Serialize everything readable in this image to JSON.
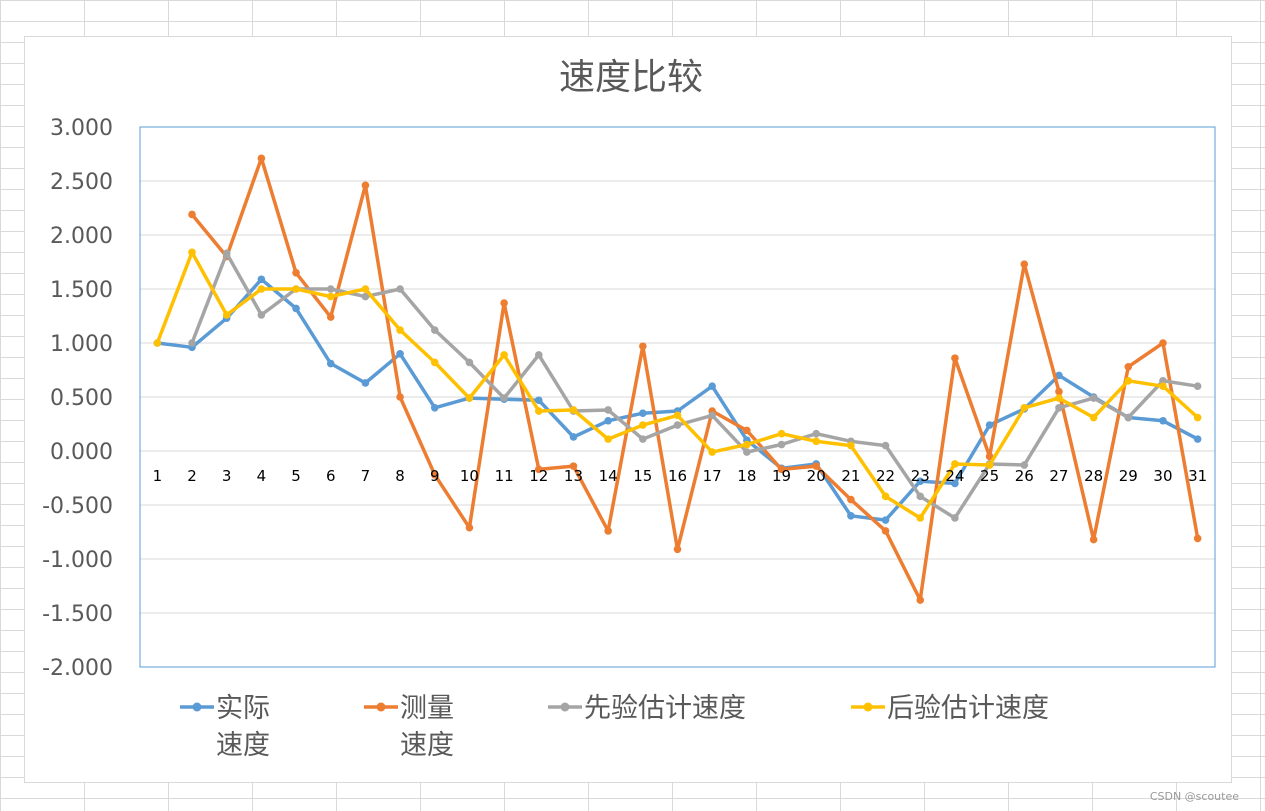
{
  "chart_data": {
    "type": "line",
    "title": "速度比较",
    "x": [
      1,
      2,
      3,
      4,
      5,
      6,
      7,
      8,
      9,
      10,
      11,
      12,
      13,
      14,
      15,
      16,
      17,
      18,
      19,
      20,
      21,
      22,
      23,
      24,
      25,
      26,
      27,
      28,
      29,
      30,
      31
    ],
    "ylim": [
      -2,
      3
    ],
    "yticks": [
      "3.000",
      "2.500",
      "2.000",
      "1.500",
      "1.000",
      "0.500",
      "0.000",
      "-0.500",
      "-1.000",
      "-1.500",
      "-2.000"
    ],
    "grid": true,
    "legend_position": "bottom",
    "series": [
      {
        "name": "实际速度",
        "legend_lines": [
          "实际",
          "速度"
        ],
        "color": "#5b9bd5",
        "values": [
          1.0,
          0.96,
          1.23,
          1.59,
          1.32,
          0.81,
          0.63,
          0.9,
          0.4,
          0.49,
          0.48,
          0.47,
          0.13,
          0.28,
          0.35,
          0.37,
          0.6,
          0.1,
          -0.16,
          -0.12,
          -0.6,
          -0.64,
          -0.28,
          -0.3,
          0.24,
          0.39,
          0.7,
          0.5,
          0.31,
          0.28,
          0.11
        ]
      },
      {
        "name": "测量速度",
        "legend_lines": [
          "测量",
          "速度"
        ],
        "color": "#ed7d31",
        "values": [
          null,
          2.19,
          1.8,
          2.71,
          1.65,
          1.24,
          2.46,
          0.5,
          -0.22,
          -0.71,
          1.37,
          -0.17,
          -0.14,
          -0.74,
          0.97,
          -0.91,
          0.37,
          0.19,
          -0.17,
          -0.14,
          -0.45,
          -0.74,
          -1.38,
          0.86,
          -0.05,
          1.73,
          0.55,
          -0.82,
          0.78,
          1.0,
          -0.81
        ]
      },
      {
        "name": "先验估计速度",
        "legend_lines": [
          "先验估计速度"
        ],
        "color": "#a5a5a5",
        "values": [
          null,
          1.0,
          1.83,
          1.26,
          1.5,
          1.5,
          1.43,
          1.5,
          1.12,
          0.82,
          0.49,
          0.89,
          0.37,
          0.38,
          0.11,
          0.24,
          0.33,
          -0.01,
          0.06,
          0.16,
          0.09,
          0.05,
          -0.42,
          -0.62,
          -0.12,
          -0.13,
          0.4,
          0.49,
          0.31,
          0.65,
          0.6
        ]
      },
      {
        "name": "后验估计速度",
        "legend_lines": [
          "后验估计速度"
        ],
        "color": "#ffc000",
        "values": [
          1.0,
          1.84,
          1.26,
          1.5,
          1.5,
          1.43,
          1.5,
          1.12,
          0.82,
          0.49,
          0.89,
          0.37,
          0.38,
          0.11,
          0.24,
          0.33,
          -0.01,
          0.06,
          0.16,
          0.09,
          0.05,
          -0.42,
          -0.62,
          -0.12,
          -0.13,
          0.4,
          0.49,
          0.31,
          0.65,
          0.6,
          0.31
        ]
      }
    ]
  },
  "colors": {
    "axis_text": "#595959",
    "gridline": "#d9d9d9",
    "plot_border": "#5b9bd5"
  },
  "watermark": "CSDN @scoutee"
}
